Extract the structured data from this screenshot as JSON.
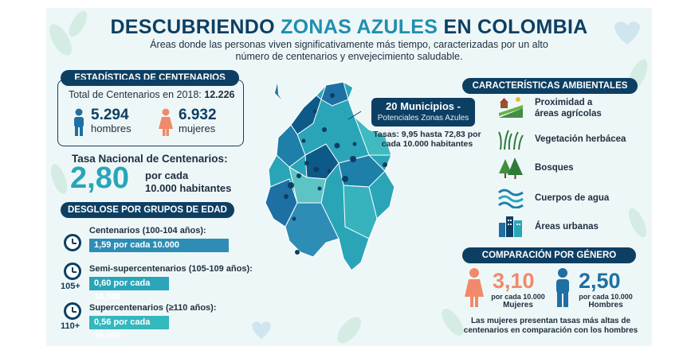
{
  "header": {
    "title_a": "DESCUBRIENDO",
    "title_b": "ZONAS AZULES",
    "title_c": "EN COLOMBIA",
    "subtitle": "Áreas donde las personas viven significativamente más tiempo, caracterizadas por un alto número de centenarios y envejecimiento saludable."
  },
  "stats": {
    "heading": "ESTADÍSTICAS DE CENTENARIOS",
    "total_label": "Total de Centenarios en 2018:",
    "total_value": "12.226",
    "men_value": "5.294",
    "men_label": "hombres",
    "women_value": "6.932",
    "women_label": "mujeres",
    "rate_label": "Tasa Nacional de Centenarios:",
    "rate_value": "2,80",
    "rate_unit_1": "por cada",
    "rate_unit_2": "10.000 habitantes"
  },
  "age_groups": {
    "heading": "DESGLOSE POR GRUPOS DE EDAD",
    "items": [
      {
        "label": "Centenarios (100-104 años):",
        "bar_text": "1,59 por cada 10.000",
        "value": 1.59,
        "badge": ""
      },
      {
        "label": "Semi-supercentenarios (105-109 años):",
        "bar_text": "0,60 por cada 10.000",
        "value": 0.6,
        "badge": "105+"
      },
      {
        "label": "Supercentenarios (≥110 años):",
        "bar_text": "0,56 por cada 10.000",
        "value": 0.56,
        "badge": "110+"
      }
    ]
  },
  "map": {
    "callout_title": "20 Municipios -",
    "callout_sub": "Potenciales Zonas Azules",
    "callout_rates_1": "Tasas: 9,95 hasta 72,83 por",
    "callout_rates_2": "cada 10.000 habitantes"
  },
  "environment": {
    "heading": "CARACTERÍSTICAS AMBIENTALES",
    "items": [
      {
        "label_1": "Proximidad a",
        "label_2": "áreas agrícolas",
        "icon": "farm-icon"
      },
      {
        "label_1": "Vegetación herbácea",
        "label_2": "",
        "icon": "grass-icon"
      },
      {
        "label_1": "Bosques",
        "label_2": "",
        "icon": "forest-icon"
      },
      {
        "label_1": "Cuerpos de agua",
        "label_2": "",
        "icon": "water-icon"
      },
      {
        "label_1": "Áreas urbanas",
        "label_2": "",
        "icon": "city-icon"
      }
    ]
  },
  "gender": {
    "heading": "COMPARACIÓN POR GÉNERO",
    "women_value": "3,10",
    "women_unit": "por cada 10.000",
    "women_label": "Mujeres",
    "men_value": "2,50",
    "men_unit": "por cada 10.000",
    "men_label": "Hombres",
    "note_1": "Las mujeres presentan tasas más altas de",
    "note_2": "centenarios en comparación con los hombres"
  },
  "colors": {
    "navy": "#0d3f63",
    "teal": "#2aa5b8",
    "coral": "#f08a6a",
    "blue_man": "#1e6fa3"
  }
}
